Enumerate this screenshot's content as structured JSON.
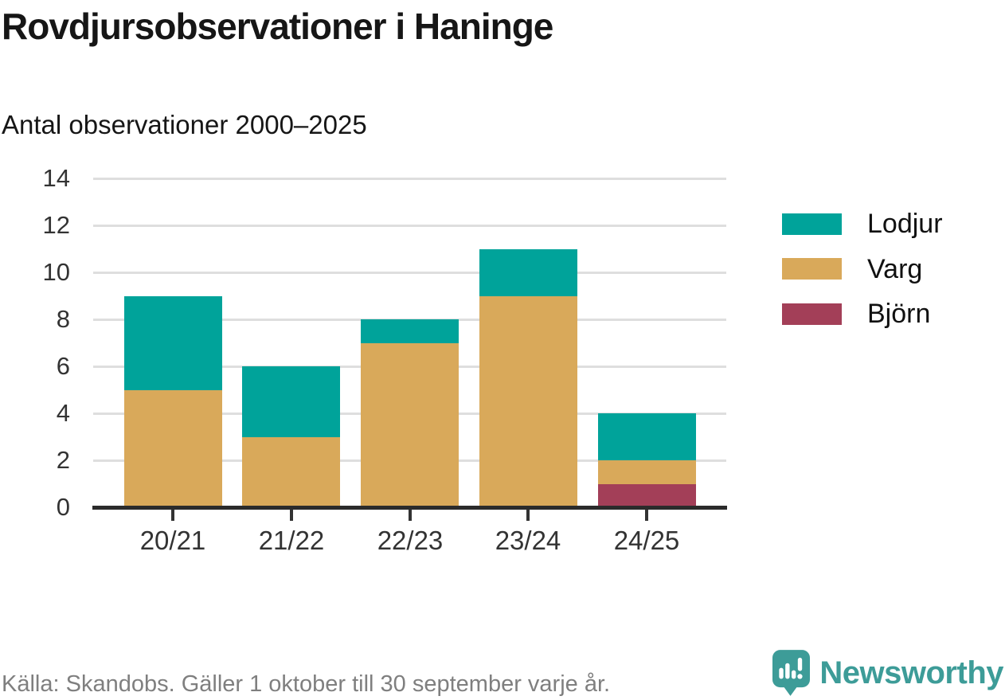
{
  "header": {
    "title": "Rovdjursobservationer i Haninge",
    "subtitle": "Antal observationer 2000–2025"
  },
  "chart_data": {
    "type": "bar",
    "stacked": true,
    "title": "Rovdjursobservationer i Haninge",
    "subtitle": "Antal observationer 2000–2025",
    "categories": [
      "20/21",
      "21/22",
      "22/23",
      "23/24",
      "24/25"
    ],
    "series": [
      {
        "name": "Lodjur",
        "color": "#00a39a",
        "values": [
          4,
          3,
          1,
          2,
          2
        ]
      },
      {
        "name": "Varg",
        "color": "#d9a95a",
        "values": [
          5,
          3,
          7,
          9,
          1
        ]
      },
      {
        "name": "Björn",
        "color": "#a33f58",
        "values": [
          0,
          0,
          0,
          0,
          1
        ]
      }
    ],
    "stack_order_bottom_to_top": [
      "Björn",
      "Varg",
      "Lodjur"
    ],
    "totals": [
      9,
      6,
      8,
      11,
      4
    ],
    "xlabel": "",
    "ylabel": "",
    "ylim": [
      0,
      14
    ],
    "yticks": [
      0,
      2,
      4,
      6,
      8,
      10,
      12,
      14
    ],
    "grid": true,
    "legend_position": "right"
  },
  "footer": {
    "source": "Källa: Skandobs. Gäller 1 oktober till 30 september varje år.",
    "brand": "Newsworthy"
  },
  "colors": {
    "lodjur": "#00a39a",
    "varg": "#d9a95a",
    "bjorn": "#a33f58",
    "axis": "#2b2b2b",
    "gridline": "#dedede",
    "tick_text": "#333333",
    "title_text": "#161616",
    "source_text": "#7f7f7f",
    "brand_teal": "#3d9c98"
  }
}
